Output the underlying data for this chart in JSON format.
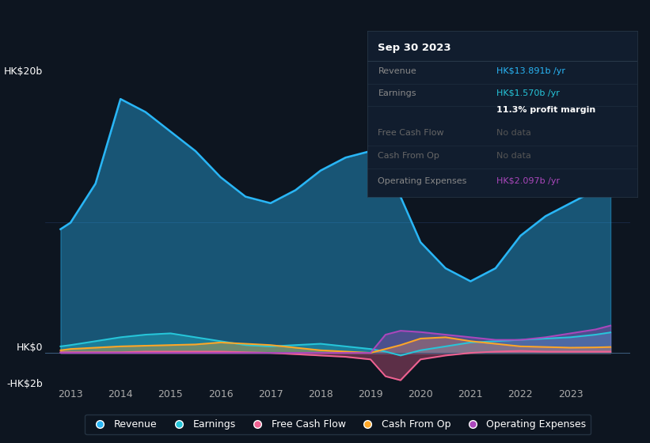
{
  "background_color": "#0d1520",
  "plot_bg_color": "#0d1520",
  "years": [
    2012.8,
    2013,
    2013.5,
    2014,
    2014.5,
    2015,
    2015.5,
    2016,
    2016.5,
    2017,
    2017.5,
    2018,
    2018.5,
    2019,
    2019.3,
    2019.6,
    2020,
    2020.5,
    2021,
    2021.5,
    2022,
    2022.5,
    2023,
    2023.5,
    2023.8
  ],
  "revenue": [
    9.5,
    10.0,
    13.0,
    19.5,
    18.5,
    17.0,
    15.5,
    13.5,
    12.0,
    11.5,
    12.5,
    14.0,
    15.0,
    15.5,
    14.0,
    12.0,
    8.5,
    6.5,
    5.5,
    6.5,
    9.0,
    10.5,
    11.5,
    12.5,
    13.9
  ],
  "earnings": [
    0.5,
    0.6,
    0.9,
    1.2,
    1.4,
    1.5,
    1.2,
    0.9,
    0.6,
    0.5,
    0.6,
    0.7,
    0.5,
    0.3,
    0.1,
    -0.2,
    0.2,
    0.5,
    0.8,
    0.9,
    1.0,
    1.1,
    1.2,
    1.4,
    1.57
  ],
  "free_cash_flow": [
    0.05,
    0.05,
    0.05,
    0.05,
    0.1,
    0.1,
    0.1,
    0.1,
    0.05,
    0.0,
    -0.1,
    -0.2,
    -0.3,
    -0.5,
    -1.8,
    -2.1,
    -0.5,
    -0.2,
    0.0,
    0.1,
    0.15,
    0.1,
    0.1,
    0.1,
    0.1
  ],
  "cash_from_op": [
    0.2,
    0.3,
    0.4,
    0.5,
    0.55,
    0.6,
    0.65,
    0.8,
    0.7,
    0.6,
    0.4,
    0.2,
    0.1,
    0.0,
    0.3,
    0.6,
    1.1,
    1.2,
    0.9,
    0.7,
    0.5,
    0.45,
    0.4,
    0.42,
    0.45
  ],
  "operating_expenses": [
    0.0,
    0.0,
    0.0,
    0.0,
    0.0,
    0.0,
    0.0,
    0.0,
    0.0,
    0.0,
    0.0,
    0.0,
    0.0,
    0.0,
    1.4,
    1.7,
    1.6,
    1.4,
    1.2,
    1.0,
    1.0,
    1.2,
    1.5,
    1.8,
    2.097
  ],
  "revenue_color": "#29b6f6",
  "earnings_color": "#26c6da",
  "fcf_color": "#f06292",
  "cashop_color": "#ffa726",
  "opex_color": "#ab47bc",
  "ylim": [
    -2.5,
    22
  ],
  "xlim": [
    2012.5,
    2024.2
  ],
  "xticks": [
    2013,
    2014,
    2015,
    2016,
    2017,
    2018,
    2019,
    2020,
    2021,
    2022,
    2023
  ],
  "grid_color": "#1e3050",
  "zero_line_color": "#3a5a7a",
  "annotation_box": {
    "title": "Sep 30 2023",
    "title_color": "#ffffff",
    "bg_color": "#111d2e",
    "border_color": "#2a3a4a",
    "rows": [
      {
        "label": "Revenue",
        "value": "HK$13.891b /yr",
        "value_color": "#29b6f6",
        "label_color": "#888888"
      },
      {
        "label": "Earnings",
        "value": "HK$1.570b /yr",
        "value_color": "#26c6da",
        "label_color": "#888888"
      },
      {
        "label": "",
        "value": "11.3% profit margin",
        "value_color": "#ffffff",
        "label_color": "#888888"
      },
      {
        "label": "Free Cash Flow",
        "value": "No data",
        "value_color": "#555555",
        "label_color": "#666666"
      },
      {
        "label": "Cash From Op",
        "value": "No data",
        "value_color": "#555555",
        "label_color": "#666666"
      },
      {
        "label": "Operating Expenses",
        "value": "HK$2.097b /yr",
        "value_color": "#ab47bc",
        "label_color": "#888888"
      }
    ]
  },
  "legend_labels": [
    "Revenue",
    "Earnings",
    "Free Cash Flow",
    "Cash From Op",
    "Operating Expenses"
  ],
  "legend_colors": [
    "#29b6f6",
    "#26c6da",
    "#f06292",
    "#ffa726",
    "#ab47bc"
  ]
}
